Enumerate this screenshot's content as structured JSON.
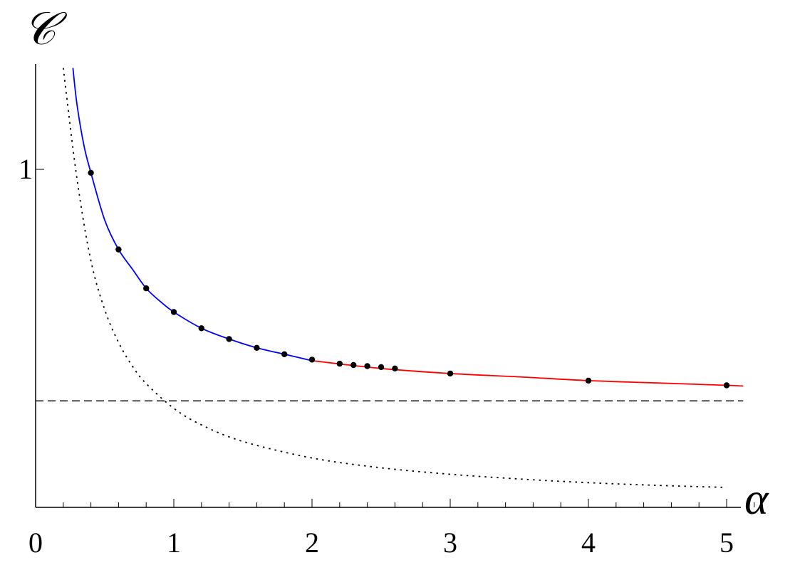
{
  "chart_data": {
    "type": "line",
    "title": "",
    "xlabel": "α",
    "ylabel": "𝒞",
    "xlim": [
      0,
      5.12
    ],
    "ylim": [
      0,
      1.26
    ],
    "x_ticks": [
      {
        "value": 0,
        "label": "0"
      },
      {
        "value": 1,
        "label": "1"
      },
      {
        "value": 2,
        "label": "2"
      },
      {
        "value": 3,
        "label": "3"
      },
      {
        "value": 4,
        "label": "4"
      },
      {
        "value": 5,
        "label": "5"
      }
    ],
    "x_minor_step": 0.2,
    "y_ticks": [
      {
        "value": 1,
        "label": "1"
      }
    ],
    "grid": false,
    "legend": "none",
    "series": [
      {
        "style": "solid",
        "color": "#0000ff",
        "x": [
          0.27,
          0.3,
          0.35,
          0.4,
          0.5,
          0.6,
          0.7,
          0.8,
          0.9,
          1.0,
          1.2,
          1.4,
          1.6,
          1.8,
          2.0
        ],
        "y": [
          1.3,
          1.19,
          1.07,
          0.99,
          0.85,
          0.763,
          0.705,
          0.648,
          0.61,
          0.578,
          0.53,
          0.498,
          0.472,
          0.453,
          0.434
        ]
      },
      {
        "style": "solid",
        "color": "#ff0000",
        "x": [
          2.0,
          2.5,
          3.0,
          3.5,
          4.0,
          4.5,
          5.0,
          5.12
        ],
        "y": [
          0.434,
          0.411,
          0.396,
          0.386,
          0.375,
          0.368,
          0.361,
          0.359
        ]
      },
      {
        "style": "dashed",
        "color": "#000000",
        "x": [
          0.0,
          5.12
        ],
        "y": [
          0.315,
          0.315
        ]
      },
      {
        "style": "dotted",
        "color": "#000000",
        "x": [
          0.2,
          0.3,
          0.4,
          0.5,
          0.6,
          0.7,
          0.8,
          1.0,
          1.2,
          1.5,
          2.0,
          2.5,
          3.0,
          3.5,
          4.0,
          4.5,
          5.0
        ],
        "y": [
          1.3,
          0.97,
          0.73,
          0.585,
          0.488,
          0.418,
          0.366,
          0.293,
          0.244,
          0.195,
          0.146,
          0.117,
          0.098,
          0.084,
          0.073,
          0.065,
          0.059
        ]
      },
      {
        "style": "markers",
        "color": "#000000",
        "x": [
          0.4,
          0.6,
          0.8,
          1.0,
          1.2,
          1.4,
          1.6,
          1.8,
          2.0,
          2.2,
          2.3,
          2.4,
          2.5,
          2.6,
          3.0,
          4.0,
          5.0
        ],
        "y": [
          0.99,
          0.763,
          0.648,
          0.578,
          0.53,
          0.498,
          0.472,
          0.453,
          0.437,
          0.425,
          0.421,
          0.418,
          0.415,
          0.411,
          0.396,
          0.375,
          0.361
        ]
      }
    ]
  }
}
